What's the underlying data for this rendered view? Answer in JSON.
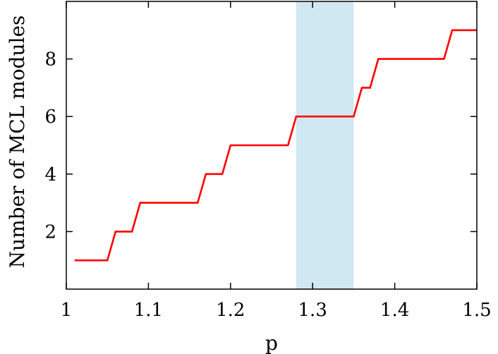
{
  "chart_data": {
    "type": "line",
    "xlabel": "p",
    "ylabel": "Number of MCL modules",
    "xlim": [
      1.0,
      1.5
    ],
    "ylim": [
      0,
      10
    ],
    "xticks": [
      1.0,
      1.1,
      1.2,
      1.3,
      1.4,
      1.5
    ],
    "xtick_labels": [
      "1",
      "1.1",
      "1.2",
      "1.3",
      "1.4",
      "1.5"
    ],
    "yticks": [
      2,
      4,
      6,
      8
    ],
    "ytick_labels": [
      "2",
      "4",
      "6",
      "8"
    ],
    "grid": false,
    "highlight_band": {
      "x": [
        1.28,
        1.35
      ],
      "color": "#cfe8f1"
    },
    "series": [
      {
        "color": "#ff0000",
        "x": [
          1.01,
          1.05,
          1.06,
          1.08,
          1.09,
          1.16,
          1.17,
          1.19,
          1.2,
          1.27,
          1.28,
          1.35,
          1.36,
          1.37,
          1.38,
          1.46,
          1.47,
          1.5
        ],
        "y": [
          1,
          1,
          2,
          2,
          3,
          3,
          4,
          4,
          5,
          5,
          6,
          6,
          7,
          7,
          8,
          8,
          9,
          9
        ]
      }
    ]
  }
}
